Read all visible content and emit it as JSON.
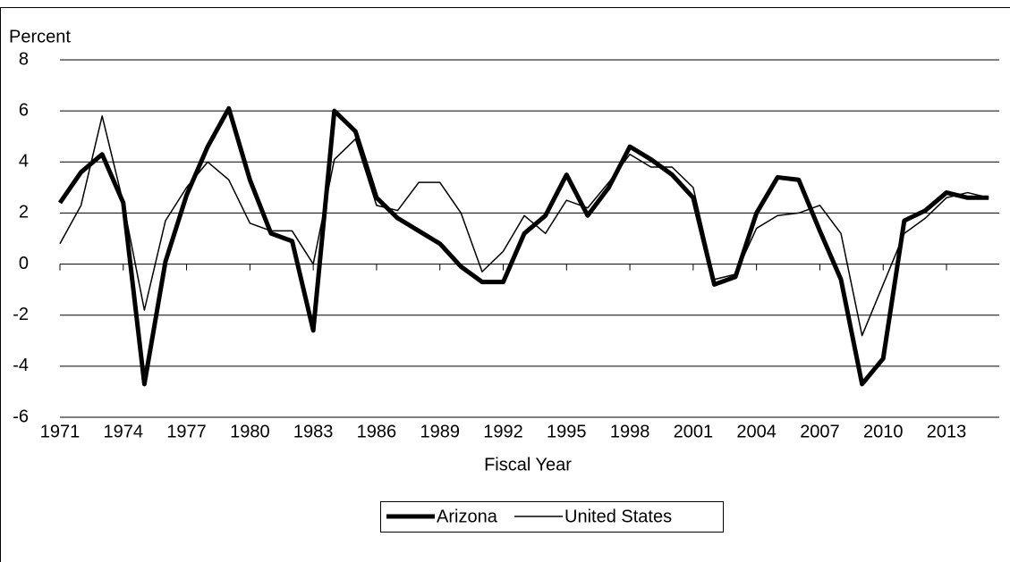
{
  "chart_data": {
    "type": "line",
    "y_label": "Percent",
    "x_label": "Fiscal Year",
    "x": [
      1971,
      1972,
      1973,
      1974,
      1975,
      1976,
      1977,
      1978,
      1979,
      1980,
      1981,
      1982,
      1983,
      1984,
      1985,
      1986,
      1987,
      1988,
      1989,
      1990,
      1991,
      1992,
      1993,
      1994,
      1995,
      1996,
      1997,
      1998,
      1999,
      2000,
      2001,
      2002,
      2003,
      2004,
      2005,
      2006,
      2007,
      2008,
      2009,
      2010,
      2011,
      2012,
      2013,
      2014,
      2015
    ],
    "series": [
      {
        "name": "Arizona",
        "color": "#000000",
        "width": 5,
        "values": [
          2.4,
          3.6,
          4.3,
          2.4,
          -4.7,
          0.1,
          2.7,
          4.6,
          6.1,
          3.3,
          1.2,
          0.9,
          -2.6,
          6.0,
          5.2,
          2.6,
          1.8,
          1.3,
          0.8,
          -0.1,
          -0.7,
          -0.7,
          1.2,
          1.9,
          3.5,
          1.9,
          3.0,
          4.6,
          4.1,
          3.5,
          2.6,
          -0.8,
          -0.5,
          2.0,
          3.4,
          3.3,
          1.3,
          -0.6,
          -4.7,
          -3.7,
          1.7,
          2.1,
          2.8,
          2.6,
          2.6
        ]
      },
      {
        "name": "United States",
        "color": "#000000",
        "width": 1.5,
        "values": [
          0.8,
          2.3,
          5.8,
          2.4,
          -1.8,
          1.7,
          3.0,
          4.0,
          3.3,
          1.6,
          1.3,
          1.3,
          0.0,
          4.1,
          4.9,
          2.3,
          2.1,
          3.2,
          3.2,
          2.0,
          -0.3,
          0.5,
          1.9,
          1.2,
          2.5,
          2.2,
          3.2,
          4.3,
          3.8,
          3.8,
          3.0,
          -0.6,
          -0.4,
          1.4,
          1.9,
          2.0,
          2.3,
          1.2,
          -2.8,
          -0.8,
          1.2,
          1.8,
          2.6,
          2.8,
          2.6
        ]
      }
    ],
    "xlim": [
      1971,
      2015.5
    ],
    "xticks": [
      1971,
      1974,
      1977,
      1980,
      1983,
      1986,
      1989,
      1992,
      1995,
      1998,
      2001,
      2004,
      2007,
      2010,
      2013
    ],
    "ylim": [
      -6,
      8
    ],
    "yticks": [
      -6,
      -4,
      -2,
      0,
      2,
      4,
      6,
      8
    ],
    "grid": true,
    "legend": "bottom"
  }
}
